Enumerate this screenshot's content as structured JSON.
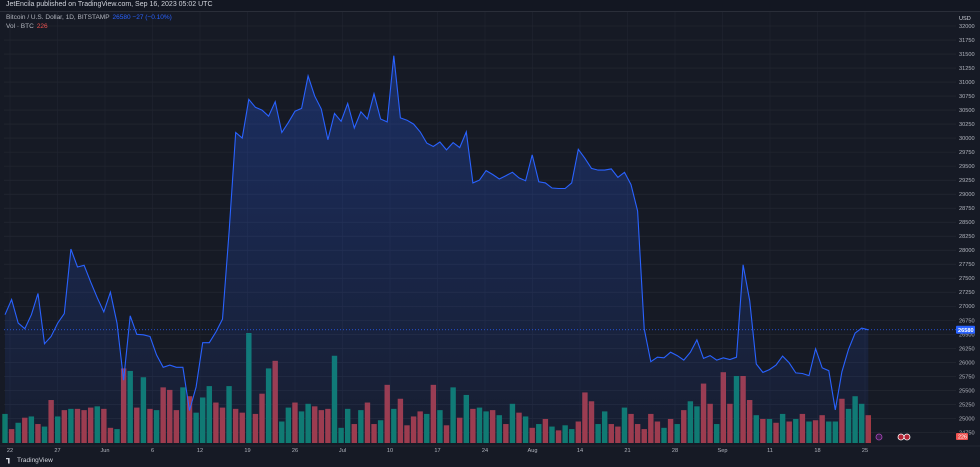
{
  "header": {
    "publisher": "JetEncila published on TradingView.com, Sep 16, 2023 05:02 UTC"
  },
  "legend": {
    "symbol": "Bitcoin / U.S. Dollar, 1D, BITSTAMP",
    "price_text": "26580 −27 (−0.10%)",
    "volume_label": "Vol · BTC",
    "volume_value": "226"
  },
  "footer": {
    "brand": "TradingView"
  },
  "colors": {
    "background": "#161a25",
    "line": "#2962ff",
    "up_volume": "#0e7c6b",
    "down_volume": "#a33a45",
    "last_price_label": "#2962ff",
    "volume_label_bg": "#ef5350"
  },
  "chart_data": {
    "type": "area",
    "title": "Bitcoin / U.S. Dollar, 1D, BITSTAMP",
    "currency": "USD",
    "price_axis": {
      "ticks": [
        24750,
        25000,
        25250,
        25500,
        25750,
        26000,
        26250,
        26500,
        26750,
        27000,
        27250,
        27500,
        27750,
        28000,
        28250,
        28500,
        28750,
        29000,
        29250,
        29500,
        29750,
        30000,
        30250,
        30500,
        30750,
        31000,
        31250,
        31500,
        31750,
        32000
      ],
      "ylim": [
        24560,
        32250
      ],
      "unit_label": "USD",
      "last_price": "26580",
      "volume_badge": "226"
    },
    "x_axis": {
      "ticks": [
        "22",
        "27",
        "Jun",
        "6",
        "12",
        "19",
        "26",
        "Jul",
        "10",
        "17",
        "24",
        "Aug",
        "14",
        "21",
        "28",
        "Sep",
        "11",
        "18",
        "25"
      ]
    },
    "series": [
      {
        "name": "Bitcoin / U.S. Dollar",
        "kind": "price",
        "values": [
          26850,
          27120,
          26700,
          26600,
          26850,
          27230,
          26330,
          26460,
          26700,
          26870,
          28020,
          27700,
          27730,
          27430,
          27150,
          26900,
          27250,
          26700,
          25680,
          26830,
          26500,
          26490,
          26460,
          26130,
          25910,
          25950,
          25910,
          25910,
          25140,
          25560,
          26350,
          26350,
          26540,
          26770,
          28330,
          30100,
          30000,
          30690,
          30550,
          30500,
          30390,
          30650,
          30100,
          30280,
          30480,
          30530,
          31110,
          30750,
          30520,
          29970,
          30440,
          30300,
          30620,
          30180,
          30470,
          30340,
          30790,
          30340,
          30290,
          31470,
          30360,
          30320,
          30250,
          30110,
          29910,
          29850,
          29930,
          29790,
          29920,
          29830,
          30110,
          29200,
          29250,
          29420,
          29350,
          29270,
          29330,
          29390,
          29290,
          29240,
          29700,
          29220,
          29200,
          29110,
          29100,
          29100,
          29200,
          29800,
          29640,
          29460,
          29430,
          29430,
          29450,
          29300,
          29390,
          29170,
          28700,
          26600,
          26010,
          26090,
          26080,
          26180,
          26120,
          26040,
          26180,
          26400,
          26070,
          26120,
          26040,
          26080,
          26050,
          26090,
          27740,
          27100,
          25970,
          25820,
          25870,
          25950,
          26110,
          25990,
          25810,
          25800,
          25760,
          26240,
          25900,
          25850,
          25150,
          25830,
          26230,
          26520,
          26610,
          26580
        ]
      },
      {
        "name": "Vol · BTC",
        "kind": "volume",
        "values": [
          2300,
          1100,
          1600,
          2000,
          2100,
          1500,
          1300,
          3400,
          2100,
          2600,
          2700,
          2700,
          2600,
          2800,
          2900,
          2700,
          1200,
          1100,
          5900,
          5700,
          2800,
          5200,
          2700,
          2600,
          4400,
          4200,
          2600,
          4400,
          3700,
          2400,
          3600,
          4500,
          3200,
          2800,
          4500,
          2700,
          2400,
          8700,
          2300,
          3900,
          5900,
          6500,
          1700,
          2800,
          3200,
          2500,
          3100,
          2900,
          2600,
          2700,
          6900,
          1200,
          2700,
          1500,
          2600,
          3200,
          1500,
          1800,
          4600,
          2700,
          3500,
          1400,
          2100,
          2500,
          2300,
          4600,
          2600,
          1400,
          4400,
          2000,
          3800,
          2700,
          2800,
          2500,
          2600,
          2200,
          1500,
          3100,
          2400,
          2100,
          1200,
          1500,
          1900,
          1300,
          1000,
          1400,
          1100,
          1700,
          4000,
          3300,
          1500,
          2500,
          1500,
          1300,
          2800,
          2300,
          1500,
          1100,
          2300,
          1700,
          1200,
          1900,
          1500,
          2600,
          3300,
          2900,
          4700,
          3100,
          1500,
          5600,
          3100,
          5300,
          5300,
          3400,
          2200,
          1900,
          1900,
          1600,
          2300,
          1700,
          1900,
          2300,
          1700,
          1800,
          2200,
          1700,
          1700,
          3500,
          2700,
          3700,
          3100,
          2200
        ],
        "direction": [
          1,
          -1,
          1,
          -1,
          1,
          -1,
          1,
          -1,
          1,
          -1,
          1,
          -1,
          -1,
          -1,
          1,
          -1,
          -1,
          1,
          -1,
          1,
          -1,
          1,
          -1,
          1,
          -1,
          -1,
          -1,
          1,
          -1,
          1,
          1,
          1,
          -1,
          -1,
          1,
          -1,
          -1,
          1,
          -1,
          -1,
          1,
          -1,
          1,
          1,
          -1,
          1,
          1,
          -1,
          -1,
          -1,
          1,
          1,
          1,
          -1,
          1,
          -1,
          -1,
          1,
          -1,
          1,
          -1,
          -1,
          -1,
          -1,
          1,
          -1,
          1,
          -1,
          1,
          -1,
          1,
          -1,
          1,
          1,
          -1,
          1,
          -1,
          1,
          -1,
          1,
          -1,
          1,
          -1,
          1,
          -1,
          1,
          1,
          -1,
          -1,
          -1,
          1,
          1,
          -1,
          -1,
          1,
          -1,
          -1,
          -1,
          -1,
          -1,
          1,
          -1,
          1,
          -1,
          1,
          1,
          -1,
          -1,
          1,
          -1,
          -1,
          1,
          -1,
          -1,
          1,
          -1,
          1,
          -1,
          1,
          -1,
          1,
          -1,
          1,
          -1,
          -1,
          1,
          1,
          -1,
          1,
          1,
          1,
          -1
        ]
      }
    ],
    "grid": true,
    "legend_position": "top-left"
  }
}
